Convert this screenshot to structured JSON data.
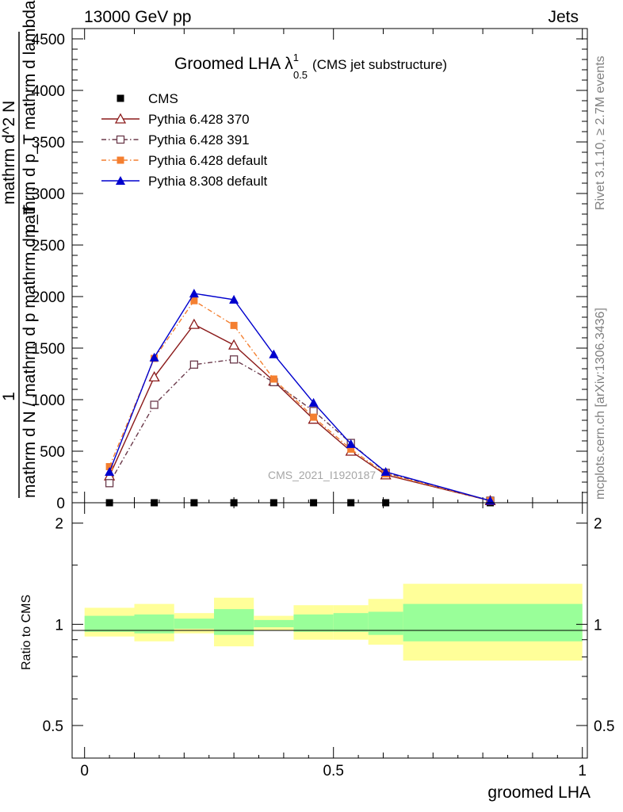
{
  "header": {
    "energy_label": "13000 GeV pp",
    "process_label": "Jets"
  },
  "side": {
    "rivet_label": "Rivet 3.1.10, ≥ 2.7M events",
    "mcplots_label": "mcplots.cern.ch [arXiv:1306.3436]"
  },
  "chart_data": {
    "type": "line",
    "title": "Groomed LHA",
    "title_symbol": "λ",
    "title_sup": "1",
    "title_sub": "0.5",
    "title_note": "(CMS jet substructure)",
    "watermark": "CMS_2021_I1920187",
    "xlabel": "groomed LHA",
    "ylabel": {
      "numerator": "1",
      "denominator": "mathrm d N / mathrm d p mathrm d p_T",
      "mathrm_dN": "mathrm d^2 N",
      "lambda_part": "mathrm d p_T mathrm d lambda",
      "combined": "mathrm d p_T mathrm d lambda"
    },
    "xlim": [
      -0.025,
      1.01
    ],
    "ylim": [
      0,
      4600
    ],
    "x_ticks": [
      {
        "value": 0,
        "label": "0"
      },
      {
        "value": 0.5,
        "label": "0.5"
      },
      {
        "value": 1,
        "label": "1"
      }
    ],
    "y_ticks": [
      {
        "value": 0,
        "label": "0"
      },
      {
        "value": 500,
        "label": "500"
      },
      {
        "value": 1000,
        "label": "1000"
      },
      {
        "value": 1500,
        "label": "1500"
      },
      {
        "value": 2000,
        "label": "2000"
      },
      {
        "value": 2500,
        "label": "2500"
      },
      {
        "value": 3000,
        "label": "3000"
      },
      {
        "value": 3500,
        "label": "3500"
      },
      {
        "value": 4000,
        "label": "4000"
      },
      {
        "value": 4500,
        "label": "4500"
      }
    ],
    "x": [
      0.05,
      0.14,
      0.22,
      0.3,
      0.38,
      0.46,
      0.535,
      0.605,
      0.815
    ],
    "series": [
      {
        "name": "CMS",
        "color": "#000000",
        "marker": "square-filled",
        "line": "none",
        "values": [
          0,
          0,
          0,
          0,
          0,
          0,
          0,
          0,
          0
        ]
      },
      {
        "name": "Pythia 6.428 370",
        "color": "#8b1a1a",
        "marker": "triangle-open",
        "line": "solid",
        "values": [
          260,
          1220,
          1730,
          1530,
          1180,
          810,
          500,
          270,
          20
        ]
      },
      {
        "name": "Pythia 6.428 391",
        "color": "#6b3a4b",
        "marker": "square-open",
        "line": "dashdot",
        "values": [
          190,
          950,
          1340,
          1390,
          1170,
          890,
          580,
          290,
          20
        ]
      },
      {
        "name": "Pythia 6.428 default",
        "color": "#f47f30",
        "marker": "square-filled",
        "line": "dashdot",
        "values": [
          350,
          1400,
          1960,
          1720,
          1200,
          830,
          520,
          280,
          20
        ]
      },
      {
        "name": "Pythia 8.308 default",
        "color": "#0000cd",
        "marker": "triangle-filled",
        "line": "solid",
        "values": [
          300,
          1410,
          2030,
          1970,
          1440,
          970,
          570,
          300,
          20
        ]
      }
    ],
    "ratio": {
      "ylabel": "Ratio to CMS",
      "ylim": [
        0.4,
        2.3
      ],
      "y_ticks": [
        {
          "value": 0.5,
          "label": "0.5"
        },
        {
          "value": 1,
          "label": "1"
        },
        {
          "value": 2,
          "label": "2"
        }
      ],
      "bins": [
        0.0,
        0.1,
        0.18,
        0.26,
        0.34,
        0.42,
        0.5,
        0.57,
        0.64,
        1.0
      ],
      "inner_band": [
        [
          0.95,
          1.06
        ],
        [
          0.94,
          1.07
        ],
        [
          0.97,
          1.04
        ],
        [
          0.93,
          1.11
        ],
        [
          0.98,
          1.03
        ],
        [
          0.95,
          1.07
        ],
        [
          0.95,
          1.08
        ],
        [
          0.93,
          1.09
        ],
        [
          0.89,
          1.15
        ]
      ],
      "outer_band": [
        [
          0.92,
          1.12
        ],
        [
          0.89,
          1.15
        ],
        [
          0.94,
          1.08
        ],
        [
          0.86,
          1.2
        ],
        [
          0.96,
          1.06
        ],
        [
          0.9,
          1.14
        ],
        [
          0.9,
          1.14
        ],
        [
          0.87,
          1.19
        ],
        [
          0.78,
          1.32
        ]
      ],
      "colors": {
        "inner": "#99ff99",
        "outer": "#ffff99"
      }
    }
  }
}
